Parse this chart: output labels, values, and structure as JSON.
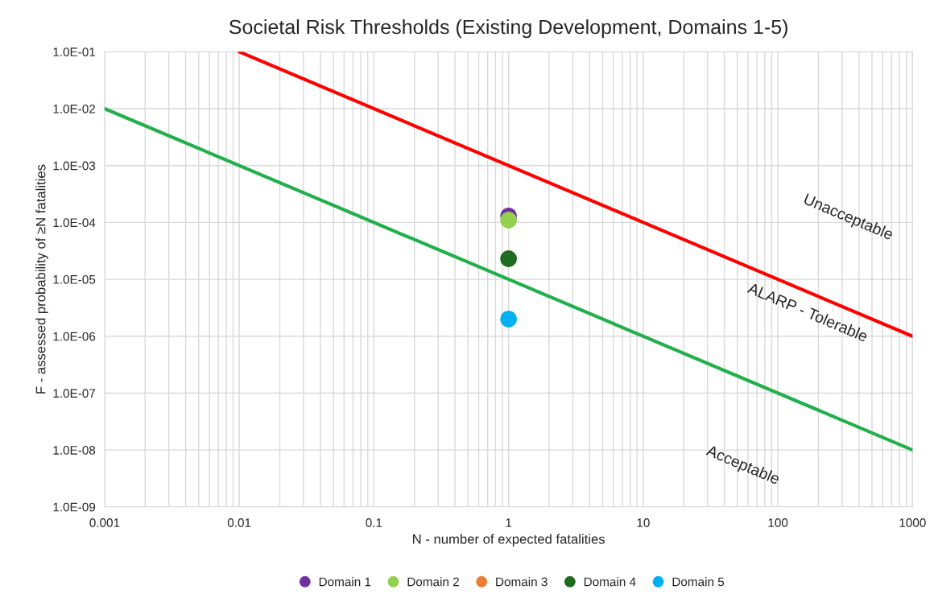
{
  "chart_data": {
    "type": "scatter",
    "title": "Societal Risk Thresholds (Existing Development, Domains 1-5)",
    "xlabel": "N - number of expected fatalities",
    "ylabel": "F - assessed probability of ≥N fatalities",
    "log": "xy",
    "grid": true,
    "legend": "bottom",
    "marker": "circle",
    "xlim": [
      0.001,
      1000
    ],
    "xticks": [
      0.001,
      0.01,
      0.1,
      1,
      10,
      100,
      1000
    ],
    "ylim": [
      1e-09,
      0.1
    ],
    "yticks": [
      {
        "value": 1e-09,
        "label": "1.0E-09"
      },
      {
        "value": 1e-08,
        "label": "1.0E-08"
      },
      {
        "value": 1e-07,
        "label": "1.0E-07"
      },
      {
        "value": 1e-06,
        "label": "1.0E-06"
      },
      {
        "value": 1e-05,
        "label": "1.0E-05"
      },
      {
        "value": 0.0001,
        "label": "1.0E-04"
      },
      {
        "value": 0.001,
        "label": "1.0E-03"
      },
      {
        "value": 0.01,
        "label": "1.0E-02"
      },
      {
        "value": 0.1,
        "label": "1.0E-01"
      }
    ],
    "series": [
      {
        "type": "line",
        "marker": "none",
        "color": "#ff0000",
        "x": [
          0.01,
          1000
        ],
        "values": [
          0.1,
          1e-06
        ]
      },
      {
        "type": "line",
        "marker": "none",
        "color": "#21b04b",
        "x": [
          0.001,
          1000
        ],
        "values": [
          0.01,
          1e-08
        ]
      },
      {
        "name": "Domain 1",
        "color": "#7030a0",
        "x": [
          1
        ],
        "values": [
          0.00013
        ]
      },
      {
        "name": "Domain 2",
        "color": "#92d050",
        "x": [
          1
        ],
        "values": [
          0.00011
        ]
      },
      {
        "name": "Domain 3",
        "color": "#ed7d31"
      },
      {
        "name": "Domain 4",
        "color": "#1e6b22",
        "x": [
          1
        ],
        "values": [
          2.3e-05
        ]
      },
      {
        "name": "Domain 5",
        "color": "#00b0f0",
        "x": [
          1
        ],
        "values": [
          2e-06
        ]
      }
    ],
    "annotations": [
      "Unacceptable",
      "ALARP - Tolerable",
      "Acceptable"
    ]
  }
}
